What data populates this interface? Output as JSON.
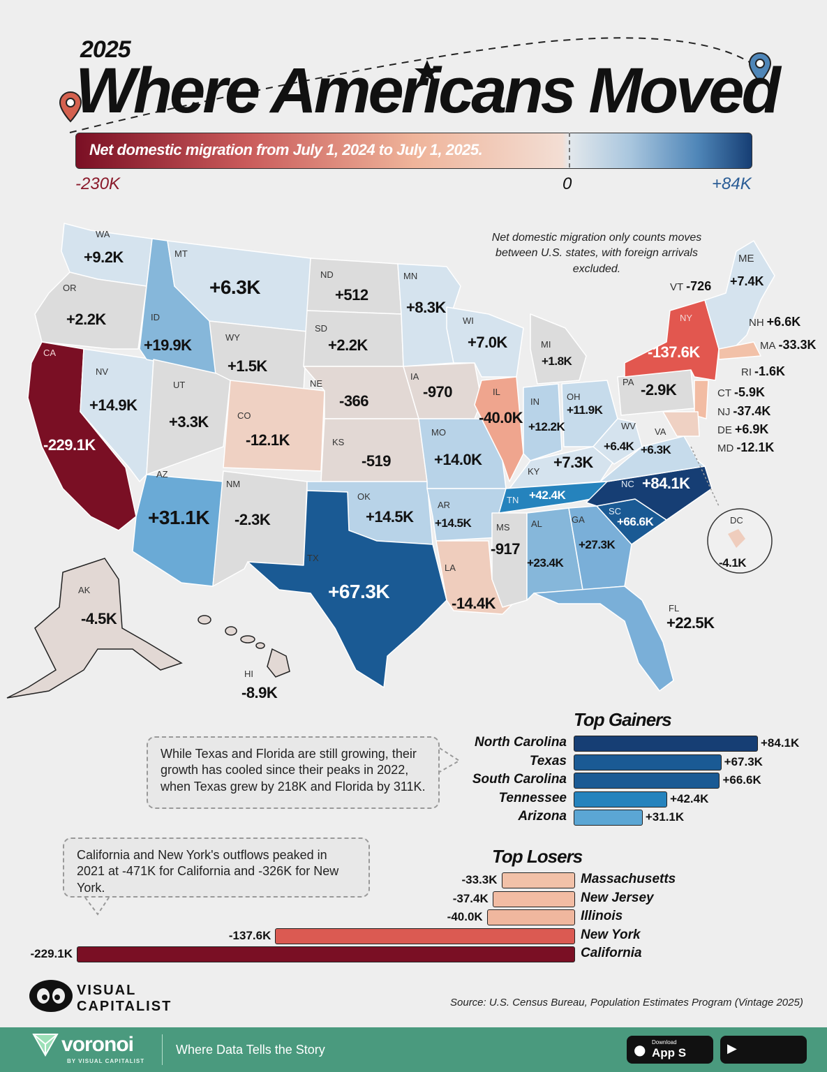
{
  "header": {
    "year": "2025",
    "title": "Where Americans Moved",
    "legend_text": "Net domestic migration from July 1, 2024 to July 1, 2025.",
    "legend_min": "-230K",
    "legend_zero": "0",
    "legend_max": "+84K",
    "legend_colors": {
      "min": "#7a0f24",
      "zero": "#e3e8ec",
      "max": "#163e74"
    }
  },
  "map_note": "Net domestic migration only counts moves between U.S. states, with foreign arrivals excluded.",
  "states": [
    {
      "abbr": "WA",
      "value": "+9.2K"
    },
    {
      "abbr": "OR",
      "value": "+2.2K"
    },
    {
      "abbr": "CA",
      "value": "-229.1K"
    },
    {
      "abbr": "NV",
      "value": "+14.9K"
    },
    {
      "abbr": "ID",
      "value": "+19.9K"
    },
    {
      "abbr": "MT",
      "value": "+6.3K"
    },
    {
      "abbr": "WY",
      "value": "+1.5K"
    },
    {
      "abbr": "UT",
      "value": "+3.3K"
    },
    {
      "abbr": "AZ",
      "value": "+31.1K"
    },
    {
      "abbr": "CO",
      "value": "-12.1K"
    },
    {
      "abbr": "NM",
      "value": "-2.3K"
    },
    {
      "abbr": "ND",
      "value": "+512"
    },
    {
      "abbr": "SD",
      "value": "+2.2K"
    },
    {
      "abbr": "NE",
      "value": "-366"
    },
    {
      "abbr": "KS",
      "value": "-519"
    },
    {
      "abbr": "OK",
      "value": "+14.5K"
    },
    {
      "abbr": "TX",
      "value": "+67.3K"
    },
    {
      "abbr": "MN",
      "value": "+8.3K"
    },
    {
      "abbr": "IA",
      "value": "-970"
    },
    {
      "abbr": "MO",
      "value": "+14.0K"
    },
    {
      "abbr": "AR",
      "value": "+14.5K"
    },
    {
      "abbr": "LA",
      "value": "-14.4K"
    },
    {
      "abbr": "WI",
      "value": "+7.0K"
    },
    {
      "abbr": "IL",
      "value": "-40.0K"
    },
    {
      "abbr": "MS",
      "value": "-917"
    },
    {
      "abbr": "MI",
      "value": "+1.8K"
    },
    {
      "abbr": "IN",
      "value": "+12.2K"
    },
    {
      "abbr": "OH",
      "value": "+11.9K"
    },
    {
      "abbr": "KY",
      "value": "+7.3K"
    },
    {
      "abbr": "TN",
      "value": "+42.4K"
    },
    {
      "abbr": "AL",
      "value": "+23.4K"
    },
    {
      "abbr": "GA",
      "value": "+27.3K"
    },
    {
      "abbr": "FL",
      "value": "+22.5K"
    },
    {
      "abbr": "SC",
      "value": "+66.6K"
    },
    {
      "abbr": "NC",
      "value": "+84.1K"
    },
    {
      "abbr": "VA",
      "value": "+6.3K"
    },
    {
      "abbr": "WV",
      "value": "+6.4K"
    },
    {
      "abbr": "PA",
      "value": "-2.9K"
    },
    {
      "abbr": "NY",
      "value": "-137.6K"
    },
    {
      "abbr": "VT",
      "value": "-726"
    },
    {
      "abbr": "ME",
      "value": "+7.4K"
    },
    {
      "abbr": "NH",
      "value": "+6.6K"
    },
    {
      "abbr": "MA",
      "value": "-33.3K"
    },
    {
      "abbr": "RI",
      "value": "-1.6K"
    },
    {
      "abbr": "CT",
      "value": "-5.9K"
    },
    {
      "abbr": "NJ",
      "value": "-37.4K"
    },
    {
      "abbr": "DE",
      "value": "+6.9K"
    },
    {
      "abbr": "MD",
      "value": "-12.1K"
    },
    {
      "abbr": "DC",
      "value": "-4.1K"
    },
    {
      "abbr": "AK",
      "value": "-4.5K"
    },
    {
      "abbr": "HI",
      "value": "-8.9K"
    }
  ],
  "gainers": {
    "title": "Top Gainers",
    "items": [
      {
        "name": "North Carolina",
        "value": 84.1,
        "label": "+84.1K",
        "color": "#163e74"
      },
      {
        "name": "Texas",
        "value": 67.3,
        "label": "+67.3K",
        "color": "#1a5a94"
      },
      {
        "name": "South Carolina",
        "value": 66.6,
        "label": "+66.6K",
        "color": "#1a5a94"
      },
      {
        "name": "Tennessee",
        "value": 42.4,
        "label": "+42.4K",
        "color": "#2583bd"
      },
      {
        "name": "Arizona",
        "value": 31.1,
        "label": "+31.1K",
        "color": "#5ba6d4"
      }
    ]
  },
  "losers": {
    "title": "Top Losers",
    "items": [
      {
        "name": "Massachusetts",
        "value": -33.3,
        "label": "-33.3K",
        "color": "#f2c1a8"
      },
      {
        "name": "New Jersey",
        "value": -37.4,
        "label": "-37.4K",
        "color": "#f2bca3"
      },
      {
        "name": "Illinois",
        "value": -40.0,
        "label": "-40.0K",
        "color": "#f0b79e"
      },
      {
        "name": "New York",
        "value": -137.6,
        "label": "-137.6K",
        "color": "#db5a52"
      },
      {
        "name": "California",
        "value": -229.1,
        "label": "-229.1K",
        "color": "#7a0f24"
      }
    ]
  },
  "callouts": {
    "texas_florida": "While Texas and Florida are still growing, their growth has cooled since their peaks in 2022, when Texas grew by 218K and Florida by 311K.",
    "ca_ny": "California and New York's outflows peaked in 2021 at -471K for California and -326K for New York."
  },
  "branding": {
    "vc_line1": "VISUAL",
    "vc_line2": "CAPITALIST",
    "source": "Source: U.S. Census Bureau, Population Estimates Program (Vintage 2025)",
    "voronoi": "voronoi",
    "voronoi_sub": "BY VISUAL CAPITALIST",
    "tagline": "Where Data Tells the Story",
    "app_small": "Download",
    "app_big": "App S"
  }
}
